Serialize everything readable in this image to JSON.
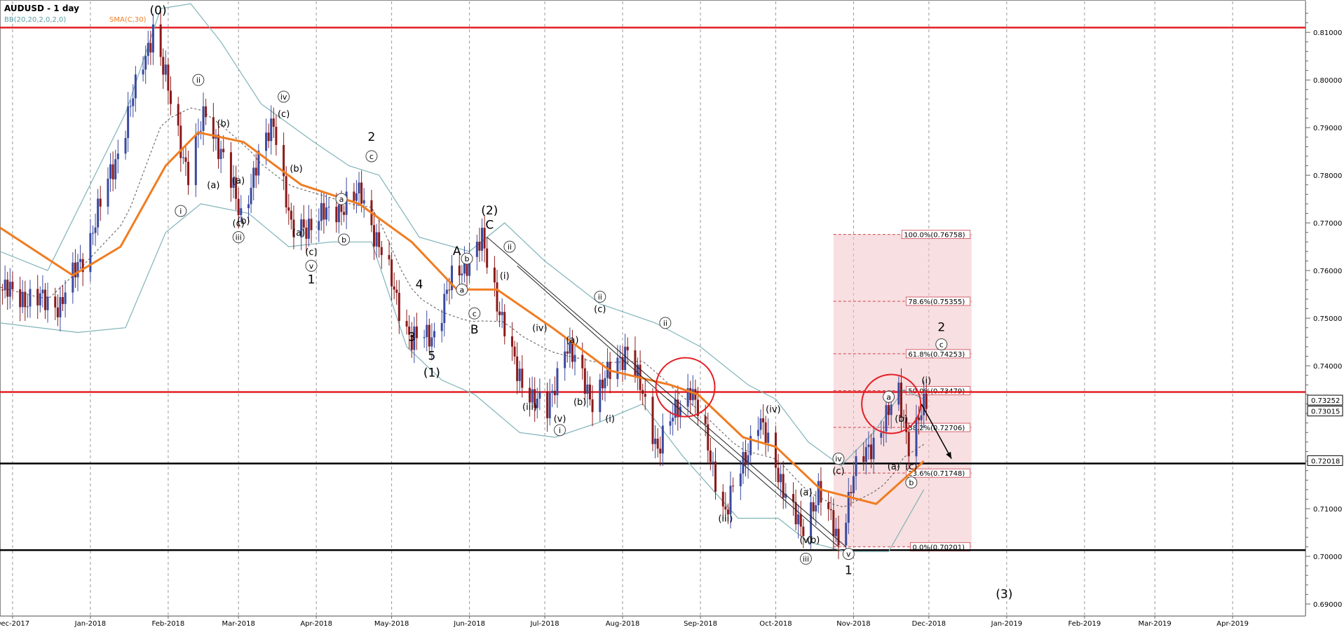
{
  "header": {
    "title": "AUDUSD - 1 day",
    "indicator_bb": "BB(20,20,2,0,2,0)",
    "indicator_sma": "SMA(C,30)"
  },
  "colors": {
    "bb_band": "#7fb3b8",
    "sma": "#f07c21",
    "bull_candle": "#3a4aa0",
    "bear_candle": "#8b1a1a",
    "red_level": "#e31e24",
    "black_level": "#000000",
    "fib_zone": "#f2c4c8",
    "fib_line": "#cc4450"
  },
  "chart_data": {
    "type": "candlestick",
    "title": "AUDUSD - 1 day",
    "x_range": [
      "2017-11-26",
      "2019-04-30"
    ],
    "x_ticks": [
      "Dec-2017",
      "Jan-2018",
      "Feb-2018",
      "Mar-2018",
      "Apr-2018",
      "May-2018",
      "Jun-2018",
      "Jul-2018",
      "Aug-2018",
      "Sep-2018",
      "Oct-2018",
      "Nov-2018",
      "Dec-2018",
      "Jan-2019",
      "Feb-2019",
      "Mar-2019",
      "Apr-2019"
    ],
    "x_tick_dates": [
      "2017-12-01",
      "2018-01-01",
      "2018-02-01",
      "2018-03-01",
      "2018-04-01",
      "2018-05-01",
      "2018-06-01",
      "2018-07-01",
      "2018-08-01",
      "2018-09-01",
      "2018-10-01",
      "2018-11-01",
      "2018-12-01",
      "2019-01-01",
      "2019-02-01",
      "2019-03-01",
      "2019-04-01"
    ],
    "ylim": [
      0.6875,
      0.8165
    ],
    "y_ticks": [
      "0.81000",
      "0.80000",
      "0.79000",
      "0.78000",
      "0.77000",
      "0.76000",
      "0.75000",
      "0.74000",
      "0.73000",
      "0.72000",
      "0.71000",
      "0.70000",
      "0.69000"
    ],
    "price_path": [
      [
        "2017-11-26",
        0.756
      ],
      [
        "2017-12-08",
        0.754
      ],
      [
        "2017-12-20",
        0.753
      ],
      [
        "2017-12-30",
        0.764
      ],
      [
        "2018-01-12",
        0.785
      ],
      [
        "2018-01-26",
        0.811
      ],
      [
        "2018-02-09",
        0.78
      ],
      [
        "2018-02-16",
        0.794
      ],
      [
        "2018-03-02",
        0.772
      ],
      [
        "2018-03-15",
        0.792
      ],
      [
        "2018-03-22",
        0.768
      ],
      [
        "2018-04-06",
        0.772
      ],
      [
        "2018-04-19",
        0.776
      ],
      [
        "2018-05-09",
        0.745
      ],
      [
        "2018-05-18",
        0.747
      ],
      [
        "2018-05-25",
        0.758
      ],
      [
        "2018-06-06",
        0.766
      ],
      [
        "2018-06-20",
        0.738
      ],
      [
        "2018-07-02",
        0.73
      ],
      [
        "2018-07-09",
        0.745
      ],
      [
        "2018-07-20",
        0.733
      ],
      [
        "2018-08-03",
        0.744
      ],
      [
        "2018-08-15",
        0.723
      ],
      [
        "2018-08-28",
        0.736
      ],
      [
        "2018-09-11",
        0.709
      ],
      [
        "2018-09-24",
        0.729
      ],
      [
        "2018-10-11",
        0.705
      ],
      [
        "2018-10-18",
        0.714
      ],
      [
        "2018-10-26",
        0.703
      ],
      [
        "2018-11-01",
        0.717
      ],
      [
        "2018-11-13",
        0.728
      ],
      [
        "2018-11-19",
        0.734
      ],
      [
        "2018-11-23",
        0.724
      ],
      [
        "2018-11-30",
        0.732
      ]
    ],
    "sma_path": [
      [
        "2017-11-26",
        0.769
      ],
      [
        "2017-12-25",
        0.759
      ],
      [
        "2018-01-13",
        0.765
      ],
      [
        "2018-01-31",
        0.782
      ],
      [
        "2018-02-13",
        0.789
      ],
      [
        "2018-03-03",
        0.787
      ],
      [
        "2018-03-26",
        0.778
      ],
      [
        "2018-04-18",
        0.774
      ],
      [
        "2018-05-09",
        0.766
      ],
      [
        "2018-05-27",
        0.756
      ],
      [
        "2018-06-12",
        0.756
      ],
      [
        "2018-07-04",
        0.748
      ],
      [
        "2018-07-27",
        0.739
      ],
      [
        "2018-08-20",
        0.736
      ],
      [
        "2018-08-31",
        0.734
      ],
      [
        "2018-09-18",
        0.725
      ],
      [
        "2018-10-01",
        0.723
      ],
      [
        "2018-10-19",
        0.714
      ],
      [
        "2018-11-10",
        0.711
      ],
      [
        "2018-11-29",
        0.72
      ]
    ],
    "bb_upper_path": [
      [
        "2017-11-26",
        0.764
      ],
      [
        "2017-12-15",
        0.76
      ],
      [
        "2018-01-15",
        0.793
      ],
      [
        "2018-01-29",
        0.815
      ],
      [
        "2018-02-10",
        0.816
      ],
      [
        "2018-02-22",
        0.808
      ],
      [
        "2018-03-10",
        0.795
      ],
      [
        "2018-03-31",
        0.787
      ],
      [
        "2018-04-14",
        0.782
      ],
      [
        "2018-04-26",
        0.78
      ],
      [
        "2018-05-12",
        0.767
      ],
      [
        "2018-06-01",
        0.764
      ],
      [
        "2018-06-15",
        0.77
      ],
      [
        "2018-07-01",
        0.762
      ],
      [
        "2018-07-23",
        0.753
      ],
      [
        "2018-08-14",
        0.749
      ],
      [
        "2018-09-01",
        0.744
      ],
      [
        "2018-09-20",
        0.736
      ],
      [
        "2018-10-01",
        0.733
      ],
      [
        "2018-10-14",
        0.724
      ],
      [
        "2018-10-27",
        0.719
      ],
      [
        "2018-11-09",
        0.726
      ],
      [
        "2018-11-21",
        0.735
      ],
      [
        "2018-11-29",
        0.733
      ]
    ],
    "bb_lower_path": [
      [
        "2017-11-26",
        0.749
      ],
      [
        "2017-12-27",
        0.747
      ],
      [
        "2018-01-15",
        0.748
      ],
      [
        "2018-01-31",
        0.768
      ],
      [
        "2018-02-14",
        0.774
      ],
      [
        "2018-03-05",
        0.772
      ],
      [
        "2018-03-21",
        0.765
      ],
      [
        "2018-04-07",
        0.766
      ],
      [
        "2018-04-23",
        0.766
      ],
      [
        "2018-05-07",
        0.744
      ],
      [
        "2018-05-21",
        0.737
      ],
      [
        "2018-06-03",
        0.734
      ],
      [
        "2018-06-21",
        0.726
      ],
      [
        "2018-07-05",
        0.725
      ],
      [
        "2018-07-22",
        0.728
      ],
      [
        "2018-08-09",
        0.732
      ],
      [
        "2018-08-25",
        0.721
      ],
      [
        "2018-09-16",
        0.708
      ],
      [
        "2018-10-02",
        0.708
      ],
      [
        "2018-10-14",
        0.703
      ],
      [
        "2018-10-29",
        0.701
      ],
      [
        "2018-11-15",
        0.701
      ],
      [
        "2018-11-29",
        0.714
      ]
    ],
    "horizontal_levels": [
      {
        "price": 0.811,
        "color": "red"
      },
      {
        "price": 0.7345,
        "color": "red"
      },
      {
        "price": 0.7195,
        "color": "black"
      },
      {
        "price": 0.7013,
        "color": "black"
      }
    ],
    "price_tags": [
      {
        "label": "0.73252",
        "price": 0.7328
      },
      {
        "label": "0.73015",
        "price": 0.7305
      },
      {
        "label": "0.72018",
        "price": 0.7201
      }
    ],
    "fib_zone": {
      "x_start": "2018-10-24",
      "x_end": "2018-12-18",
      "price_low": 0.70201,
      "price_high": 0.76758
    },
    "fib_levels": [
      {
        "label": "100.0%(0.76758)",
        "price": 0.76758
      },
      {
        "label": "78.6%(0.75355)",
        "price": 0.75355
      },
      {
        "label": "61.8%(0.74253)",
        "price": 0.74253
      },
      {
        "label": "50.0%(0.73479)",
        "price": 0.73479
      },
      {
        "label": "38.2%(0.72706)",
        "price": 0.72706
      },
      {
        "label": "23.6%(0.71748)",
        "price": 0.71748
      },
      {
        "label": "0.0%(0.70201)",
        "price": 0.70201
      }
    ],
    "wave_labels": [
      {
        "text": "(0)",
        "date": "2018-01-28",
        "price": 0.8145,
        "style": "plain"
      },
      {
        "text": "ii",
        "date": "2018-02-13",
        "price": 0.8,
        "style": "circle"
      },
      {
        "text": "(b)",
        "date": "2018-02-23",
        "price": 0.791,
        "style": "plain"
      },
      {
        "text": "iv",
        "date": "2018-03-19",
        "price": 0.7965,
        "style": "circle"
      },
      {
        "text": "(c)",
        "date": "2018-03-19",
        "price": 0.793,
        "style": "plain"
      },
      {
        "text": "(a)",
        "date": "2018-02-19",
        "price": 0.778,
        "style": "plain"
      },
      {
        "text": "(a)",
        "date": "2018-03-01",
        "price": 0.779,
        "style": "plain"
      },
      {
        "text": "i",
        "date": "2018-02-06",
        "price": 0.7725,
        "style": "circle"
      },
      {
        "text": "(c)",
        "date": "2018-03-01",
        "price": 0.77,
        "style": "plain"
      },
      {
        "text": "(b)",
        "date": "2018-03-03",
        "price": 0.7705,
        "style": "plain"
      },
      {
        "text": "iii",
        "date": "2018-03-01",
        "price": 0.767,
        "style": "circle"
      },
      {
        "text": "(b)",
        "date": "2018-03-24",
        "price": 0.7815,
        "style": "plain"
      },
      {
        "text": "(a)",
        "date": "2018-03-25",
        "price": 0.768,
        "style": "plain"
      },
      {
        "text": "(c)",
        "date": "2018-03-30",
        "price": 0.764,
        "style": "plain"
      },
      {
        "text": "v",
        "date": "2018-03-30",
        "price": 0.761,
        "style": "circle"
      },
      {
        "text": "1",
        "date": "2018-03-30",
        "price": 0.758,
        "style": "plain"
      },
      {
        "text": "a",
        "date": "2018-04-11",
        "price": 0.775,
        "style": "circle"
      },
      {
        "text": "b",
        "date": "2018-04-12",
        "price": 0.7665,
        "style": "circle"
      },
      {
        "text": "2",
        "date": "2018-04-23",
        "price": 0.788,
        "style": "plain"
      },
      {
        "text": "c",
        "date": "2018-04-23",
        "price": 0.784,
        "style": "circle"
      },
      {
        "text": "4",
        "date": "2018-05-12",
        "price": 0.757,
        "style": "plain"
      },
      {
        "text": "3",
        "date": "2018-05-09",
        "price": 0.746,
        "style": "plain"
      },
      {
        "text": "5",
        "date": "2018-05-17",
        "price": 0.742,
        "style": "plain"
      },
      {
        "text": "(1)",
        "date": "2018-05-17",
        "price": 0.7385,
        "style": "plain"
      },
      {
        "text": "A",
        "date": "2018-05-27",
        "price": 0.764,
        "style": "plain"
      },
      {
        "text": "b",
        "date": "2018-05-31",
        "price": 0.7625,
        "style": "circle"
      },
      {
        "text": "a",
        "date": "2018-05-29",
        "price": 0.756,
        "style": "circle"
      },
      {
        "text": "c",
        "date": "2018-06-03",
        "price": 0.751,
        "style": "circle"
      },
      {
        "text": "B",
        "date": "2018-06-03",
        "price": 0.7475,
        "style": "plain"
      },
      {
        "text": "(2)",
        "date": "2018-06-09",
        "price": 0.7725,
        "style": "plain"
      },
      {
        "text": "C",
        "date": "2018-06-09",
        "price": 0.7695,
        "style": "plain"
      },
      {
        "text": "ii",
        "date": "2018-06-17",
        "price": 0.765,
        "style": "circle"
      },
      {
        "text": "(i)",
        "date": "2018-06-15",
        "price": 0.759,
        "style": "plain"
      },
      {
        "text": "ii",
        "date": "2018-07-23",
        "price": 0.7545,
        "style": "circle"
      },
      {
        "text": "(c)",
        "date": "2018-07-23",
        "price": 0.752,
        "style": "plain"
      },
      {
        "text": "(iv)",
        "date": "2018-06-29",
        "price": 0.748,
        "style": "plain"
      },
      {
        "text": "(a)",
        "date": "2018-07-12",
        "price": 0.7455,
        "style": "plain"
      },
      {
        "text": "(b)",
        "date": "2018-07-15",
        "price": 0.7325,
        "style": "plain"
      },
      {
        "text": "(iii)",
        "date": "2018-06-25",
        "price": 0.7315,
        "style": "plain"
      },
      {
        "text": "(v)",
        "date": "2018-07-07",
        "price": 0.729,
        "style": "plain"
      },
      {
        "text": "i",
        "date": "2018-07-07",
        "price": 0.7265,
        "style": "circle"
      },
      {
        "text": "(i)",
        "date": "2018-07-27",
        "price": 0.729,
        "style": "plain"
      },
      {
        "text": "ii",
        "date": "2018-08-18",
        "price": 0.749,
        "style": "circle"
      },
      {
        "text": "(iv)",
        "date": "2018-09-30",
        "price": 0.731,
        "style": "plain"
      },
      {
        "text": "iv",
        "date": "2018-10-26",
        "price": 0.7205,
        "style": "circle"
      },
      {
        "text": "(c)",
        "date": "2018-10-26",
        "price": 0.718,
        "style": "plain"
      },
      {
        "text": "(a)",
        "date": "2018-10-13",
        "price": 0.7135,
        "style": "plain"
      },
      {
        "text": "(iii)",
        "date": "2018-09-11",
        "price": 0.708,
        "style": "plain"
      },
      {
        "text": "(v)",
        "date": "2018-10-13",
        "price": 0.7035,
        "style": "plain"
      },
      {
        "text": "(b)",
        "date": "2018-10-16",
        "price": 0.7035,
        "style": "plain"
      },
      {
        "text": "iii",
        "date": "2018-10-13",
        "price": 0.6995,
        "style": "circle"
      },
      {
        "text": "v",
        "date": "2018-10-30",
        "price": 0.7005,
        "style": "circle"
      },
      {
        "text": "1",
        "date": "2018-10-30",
        "price": 0.697,
        "style": "plain"
      },
      {
        "text": "a",
        "date": "2018-11-15",
        "price": 0.7335,
        "style": "circle"
      },
      {
        "text": "(i)",
        "date": "2018-11-30",
        "price": 0.737,
        "style": "plain"
      },
      {
        "text": "(b)",
        "date": "2018-11-20",
        "price": 0.729,
        "style": "plain"
      },
      {
        "text": "(a)",
        "date": "2018-11-17",
        "price": 0.719,
        "style": "plain"
      },
      {
        "text": "(c)",
        "date": "2018-11-24",
        "price": 0.719,
        "style": "plain"
      },
      {
        "text": "b",
        "date": "2018-11-24",
        "price": 0.7155,
        "style": "circle"
      },
      {
        "text": "2",
        "date": "2018-12-06",
        "price": 0.748,
        "style": "plain"
      },
      {
        "text": "c",
        "date": "2018-12-06",
        "price": 0.7445,
        "style": "circle"
      },
      {
        "text": "(3)",
        "date": "2018-12-31",
        "price": 0.692,
        "style": "plain"
      }
    ],
    "highlight_circles": [
      {
        "date": "2018-08-26",
        "price": 0.7355
      },
      {
        "date": "2018-11-16",
        "price": 0.732
      }
    ],
    "trendlines": [
      {
        "from": [
          "2018-06-08",
          0.767
        ],
        "to": [
          "2018-10-29",
          0.702
        ]
      },
      {
        "from": [
          "2018-06-20",
          0.761
        ],
        "to": [
          "2018-08-21",
          0.732
        ]
      },
      {
        "from": [
          "2018-08-19",
          0.733
        ],
        "to": [
          "2018-10-26",
          0.702
        ]
      }
    ],
    "forecast_arrow": {
      "from": [
        "2018-11-28",
        0.732
      ],
      "to": [
        "2018-12-10",
        0.7205
      ]
    }
  }
}
